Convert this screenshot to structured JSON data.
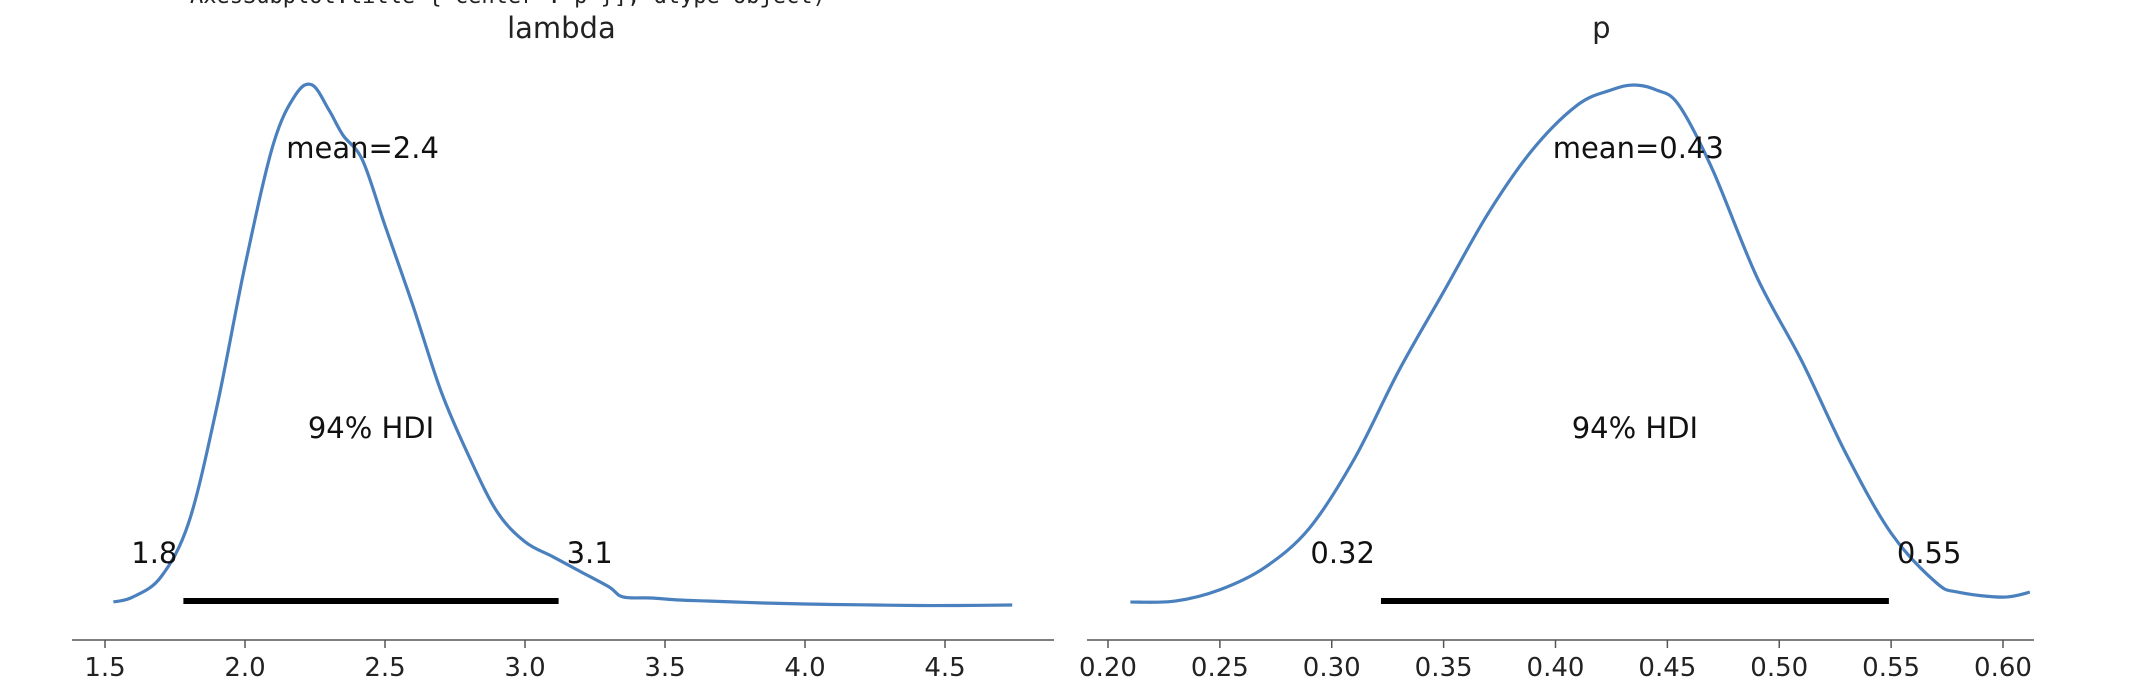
{
  "header": {
    "text": "AxesSubplot:title={'center':'p'}], dtype=object)"
  },
  "chart_data": [
    {
      "type": "line",
      "title": "lambda",
      "xlabel": "",
      "ylabel": "",
      "xlim": [
        1.52,
        4.74
      ],
      "grid": false,
      "series": [
        {
          "x": [
            1.53,
            1.6,
            1.7,
            1.8,
            1.9,
            2.0,
            2.1,
            2.18,
            2.24,
            2.3,
            2.35,
            2.42,
            2.5,
            2.6,
            2.7,
            2.8,
            2.9,
            3.0,
            3.1,
            3.2,
            3.3,
            3.35,
            3.45,
            3.55,
            3.65,
            3.75,
            3.85,
            4.0,
            4.1,
            4.25,
            4.4,
            4.55,
            4.74
          ],
          "y": [
            0.01,
            0.02,
            0.06,
            0.17,
            0.4,
            0.68,
            0.92,
            1.02,
            1.04,
            0.99,
            0.94,
            0.89,
            0.76,
            0.6,
            0.43,
            0.3,
            0.19,
            0.13,
            0.1,
            0.07,
            0.04,
            0.02,
            0.018,
            0.014,
            0.012,
            0.01,
            0.008,
            0.006,
            0.005,
            0.004,
            0.003,
            0.003,
            0.004
          ]
        }
      ],
      "mean_label": "mean=2.4",
      "hdi": {
        "label": "94% HDI",
        "low": 1.78,
        "high": 3.12,
        "low_label": "1.8",
        "high_label": "3.1"
      },
      "xticks": [
        "1.5",
        "2.0",
        "2.5",
        "3.0",
        "3.5",
        "4.0",
        "4.5"
      ],
      "xtick_values": [
        1.5,
        2.0,
        2.5,
        3.0,
        3.5,
        4.0,
        4.5
      ]
    },
    {
      "type": "line",
      "title": "p",
      "xlabel": "",
      "ylabel": "",
      "xlim": [
        0.209,
        0.632
      ],
      "grid": false,
      "series": [
        {
          "x": [
            0.21,
            0.23,
            0.25,
            0.27,
            0.29,
            0.31,
            0.33,
            0.35,
            0.37,
            0.39,
            0.41,
            0.425,
            0.435,
            0.445,
            0.455,
            0.47,
            0.49,
            0.51,
            0.53,
            0.55,
            0.57,
            0.58,
            0.6,
            0.612
          ],
          "y": [
            0.01,
            0.012,
            0.035,
            0.08,
            0.16,
            0.3,
            0.48,
            0.64,
            0.8,
            0.93,
            1.02,
            1.05,
            1.06,
            1.05,
            1.02,
            0.89,
            0.67,
            0.5,
            0.31,
            0.15,
            0.05,
            0.03,
            0.02,
            0.03
          ]
        }
      ],
      "mean_label": "mean=0.43",
      "hdi": {
        "label": "94% HDI",
        "low": 0.322,
        "high": 0.549,
        "low_label": "0.32",
        "high_label": "0.55"
      },
      "xticks": [
        "0.20",
        "0.25",
        "0.30",
        "0.35",
        "0.40",
        "0.45",
        "0.50",
        "0.55",
        "0.60"
      ],
      "xtick_values": [
        0.2,
        0.25,
        0.3,
        0.35,
        0.4,
        0.45,
        0.5,
        0.55,
        0.6
      ]
    }
  ]
}
